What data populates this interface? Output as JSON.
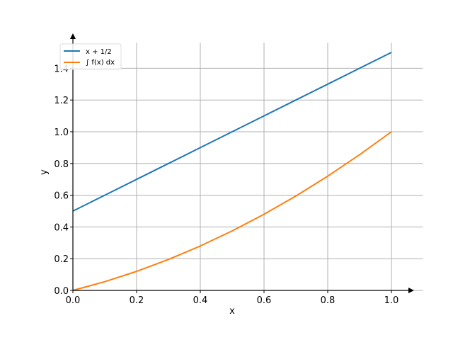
{
  "chart_data": {
    "type": "line",
    "xlabel": "x",
    "ylabel": "y",
    "xlim": [
      0.0,
      1.05
    ],
    "ylim": [
      0.0,
      1.56
    ],
    "x_ticks": [
      0.0,
      0.2,
      0.4,
      0.6,
      0.8,
      1.0
    ],
    "x_tick_labels": [
      "0.0",
      "0.2",
      "0.4",
      "0.6",
      "0.8",
      "1.0"
    ],
    "y_ticks": [
      0.0,
      0.2,
      0.4,
      0.6,
      0.8,
      1.0,
      1.2,
      1.4
    ],
    "y_tick_labels": [
      "0.0",
      "0.2",
      "0.4",
      "0.6",
      "0.8",
      "1.0",
      "1.2",
      "1.4"
    ],
    "grid": true,
    "legend_position": "top-left",
    "series": [
      {
        "name": "x + 1/2",
        "color": "#1f77b4",
        "x": [
          0.0,
          0.1,
          0.2,
          0.3,
          0.4,
          0.5,
          0.6,
          0.7,
          0.8,
          0.9,
          1.0
        ],
        "y": [
          0.5,
          0.6,
          0.7,
          0.8,
          0.9,
          1.0,
          1.1,
          1.2,
          1.3,
          1.4,
          1.5
        ]
      },
      {
        "name": "∫ f(x) dx",
        "color": "#ff7f0e",
        "x": [
          0.0,
          0.1,
          0.2,
          0.3,
          0.4,
          0.5,
          0.6,
          0.7,
          0.8,
          0.9,
          1.0
        ],
        "y": [
          0.0,
          0.055,
          0.12,
          0.195,
          0.28,
          0.375,
          0.48,
          0.595,
          0.72,
          0.855,
          1.0
        ]
      }
    ]
  }
}
